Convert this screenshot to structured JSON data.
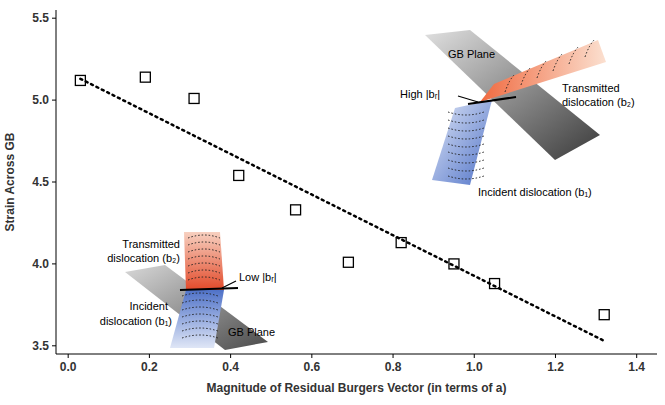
{
  "chart_data": {
    "type": "scatter",
    "x_label": "Magnitude of Residual Burgers Vector (in terms of a)",
    "y_label": "Strain Across GB",
    "xlim": [
      -0.03,
      1.45
    ],
    "xticks": [
      {
        "value": 0,
        "label": "0.0"
      },
      0.2,
      0.4,
      0.6,
      0.8,
      {
        "value": 1,
        "label": "1.0"
      },
      1.2,
      1.4
    ],
    "ylim": [
      3.45,
      5.55
    ],
    "yticks": [
      3.5,
      {
        "value": 4,
        "label": "4.0"
      },
      4.5,
      {
        "value": 5,
        "label": "5.0"
      },
      5.5
    ],
    "grid": false,
    "series": [
      {
        "type": "scatter",
        "marker": "square",
        "color": "#000000",
        "x": [
          0.03,
          0.19,
          0.31,
          0.42,
          0.56,
          0.69,
          0.82,
          0.95,
          1.05,
          1.32
        ],
        "values": [
          5.12,
          5.14,
          5.01,
          4.54,
          4.33,
          4.01,
          4.13,
          4.0,
          3.88,
          3.69
        ]
      },
      {
        "type": "line",
        "line_style": "dotted",
        "color": "#000000",
        "x": [
          0.03,
          1.32
        ],
        "values": [
          5.13,
          3.53
        ]
      }
    ],
    "annotations": [
      "Transmitted",
      "dislocation (b₂)",
      "Incident",
      "dislocation (b₁)",
      "Low |bᵣ|",
      "GB Plane",
      "GB Plane",
      "High |bᵣ|",
      "Transmitted",
      "dislocation (b₂)",
      "Incident dislocation (b₁)"
    ]
  }
}
